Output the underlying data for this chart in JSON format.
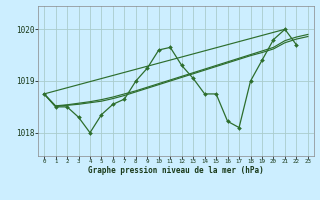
{
  "background_color": "#cceeff",
  "grid_color": "#aacccc",
  "line_color": "#2d6e2d",
  "title": "Graphe pression niveau de la mer (hPa)",
  "xlim": [
    -0.5,
    23.5
  ],
  "ylim": [
    1017.55,
    1020.45
  ],
  "yticks": [
    1018,
    1019,
    1020
  ],
  "xtick_labels": [
    "0",
    "1",
    "2",
    "3",
    "4",
    "5",
    "6",
    "7",
    "8",
    "9",
    "10",
    "11",
    "12",
    "13",
    "14",
    "15",
    "16",
    "17",
    "18",
    "19",
    "20",
    "21",
    "22",
    "23"
  ],
  "series": [
    {
      "x": [
        0,
        1,
        2,
        3,
        4,
        5,
        6,
        7,
        8,
        9,
        10,
        11,
        12,
        13,
        14,
        15,
        16,
        17,
        18,
        19,
        20,
        21,
        22
      ],
      "y": [
        1018.75,
        1018.5,
        1018.5,
        1018.3,
        1018.0,
        1018.35,
        1018.55,
        1018.65,
        1019.0,
        1019.25,
        1019.6,
        1019.65,
        1019.3,
        1019.05,
        1018.75,
        1018.75,
        1018.22,
        1018.1,
        1019.0,
        1019.4,
        1019.8,
        1020.0,
        1019.7
      ],
      "marker": true,
      "lw": 0.9
    },
    {
      "x": [
        0,
        21
      ],
      "y": [
        1018.75,
        1020.0
      ],
      "marker": false,
      "lw": 0.85
    },
    {
      "x": [
        0,
        1,
        2,
        3,
        4,
        5,
        6,
        7,
        8,
        9,
        10,
        11,
        12,
        13,
        14,
        15,
        16,
        17,
        18,
        19,
        20,
        21,
        22,
        23
      ],
      "y": [
        1018.75,
        1018.52,
        1018.54,
        1018.57,
        1018.6,
        1018.64,
        1018.69,
        1018.75,
        1018.81,
        1018.88,
        1018.95,
        1019.02,
        1019.09,
        1019.16,
        1019.23,
        1019.3,
        1019.37,
        1019.44,
        1019.51,
        1019.58,
        1019.65,
        1019.78,
        1019.85,
        1019.9
      ],
      "marker": false,
      "lw": 0.85
    },
    {
      "x": [
        0,
        1,
        2,
        3,
        4,
        5,
        6,
        7,
        8,
        9,
        10,
        11,
        12,
        13,
        14,
        15,
        16,
        17,
        18,
        19,
        20,
        21,
        22,
        23
      ],
      "y": [
        1018.75,
        1018.51,
        1018.53,
        1018.55,
        1018.58,
        1018.61,
        1018.66,
        1018.72,
        1018.79,
        1018.86,
        1018.93,
        1019.0,
        1019.07,
        1019.14,
        1019.21,
        1019.28,
        1019.35,
        1019.42,
        1019.49,
        1019.55,
        1019.62,
        1019.74,
        1019.81,
        1019.86
      ],
      "marker": false,
      "lw": 0.85
    }
  ]
}
